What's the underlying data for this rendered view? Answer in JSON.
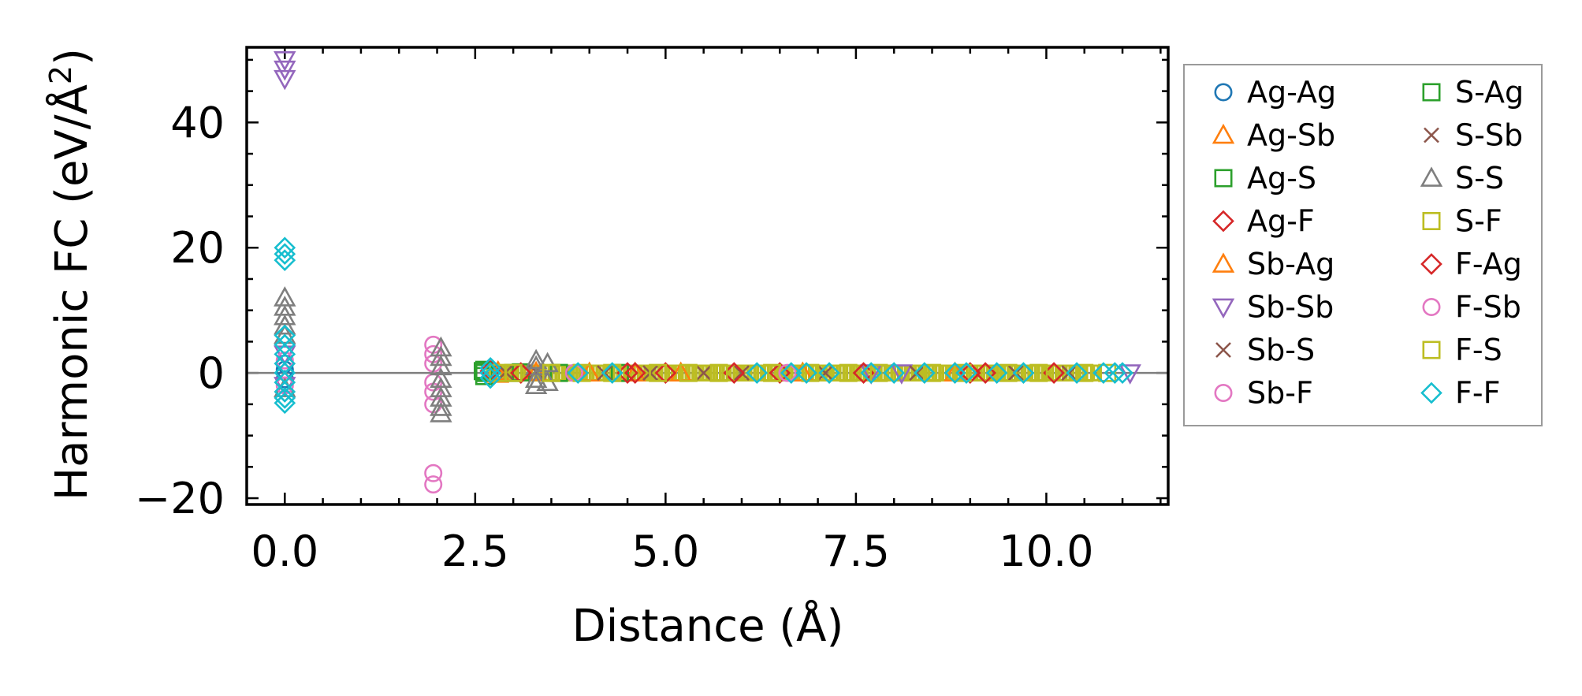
{
  "chart_data": {
    "type": "scatter",
    "title": "",
    "xlabel": "Distance (Å)",
    "ylabel_prefix": "Harmonic FC (eV/Å",
    "ylabel_sup": "2",
    "ylabel_suffix": ")",
    "xlim": [
      -0.5,
      11.6
    ],
    "ylim": [
      -21,
      52
    ],
    "xticks": [
      0,
      2.5,
      5,
      7.5,
      10
    ],
    "xtick_labels": [
      "0.0",
      "2.5",
      "5.0",
      "7.5",
      "10.0"
    ],
    "yticks": [
      -20,
      0,
      20,
      40
    ],
    "ytick_labels": [
      "−20",
      "0",
      "20",
      "40"
    ],
    "zero_line": 0,
    "legend_location": "outside-right",
    "series": [
      {
        "name": "Ag-Ag",
        "color": "#1f77b4",
        "marker": "circle",
        "points": [
          [
            0,
            1.5
          ],
          [
            0,
            -1.0
          ],
          [
            0,
            0.5
          ]
        ]
      },
      {
        "name": "Ag-Sb",
        "color": "#ff7f0e",
        "marker": "triangle-up",
        "points": [
          [
            2.8,
            0.2
          ],
          [
            3.3,
            0.1
          ],
          [
            4.6,
            0.0
          ],
          [
            5.2,
            0.0
          ]
        ]
      },
      {
        "name": "Ag-S",
        "color": "#2ca02c",
        "marker": "square",
        "points": [
          [
            2.62,
            0.5
          ],
          [
            2.62,
            -0.5
          ],
          [
            2.62,
            0.0
          ],
          [
            3.1,
            0.1
          ],
          [
            4.4,
            0.0
          ]
        ]
      },
      {
        "name": "Ag-F",
        "color": "#d62728",
        "marker": "diamond",
        "points": [
          [
            2.7,
            0.3
          ],
          [
            4.5,
            0.0
          ],
          [
            5.0,
            0.0
          ],
          [
            6.5,
            0.0
          ],
          [
            9.2,
            0.0
          ],
          [
            10.1,
            0.0
          ]
        ]
      },
      {
        "name": "Sb-Ag",
        "color": "#ff7f0e",
        "marker": "triangle-up",
        "points": [
          [
            2.8,
            -0.2
          ],
          [
            4.0,
            0.0
          ],
          [
            6.8,
            0.0
          ],
          [
            8.8,
            0.0
          ]
        ]
      },
      {
        "name": "Sb-Sb",
        "color": "#9467bd",
        "marker": "triangle-down",
        "points": [
          [
            0,
            50.0
          ],
          [
            0,
            48.5
          ],
          [
            0,
            47.0
          ],
          [
            0,
            3.0
          ],
          [
            0,
            -2.0
          ],
          [
            7.7,
            0.0
          ],
          [
            8.1,
            0.0
          ],
          [
            11.1,
            0.0
          ]
        ]
      },
      {
        "name": "Sb-S",
        "color": "#8c564b",
        "marker": "x",
        "points": [
          [
            2.9,
            0.1
          ],
          [
            4.2,
            0.0
          ],
          [
            5.5,
            0.0
          ],
          [
            7.1,
            0.0
          ],
          [
            9.6,
            0.0
          ]
        ]
      },
      {
        "name": "Sb-F",
        "color": "#e377c2",
        "marker": "circle",
        "points": [
          [
            1.95,
            4.5
          ],
          [
            1.95,
            3.0
          ],
          [
            1.95,
            1.5
          ],
          [
            1.95,
            -1.5
          ],
          [
            1.95,
            -3.0
          ],
          [
            1.95,
            -5.0
          ],
          [
            1.95,
            -16.0
          ],
          [
            1.95,
            -17.8
          ]
        ]
      },
      {
        "name": "S-Ag",
        "color": "#2ca02c",
        "marker": "square",
        "points": [
          [
            2.6,
            0.3
          ],
          [
            3.0,
            0.0
          ],
          [
            3.6,
            0.0
          ]
        ]
      },
      {
        "name": "S-Sb",
        "color": "#8c564b",
        "marker": "x",
        "points": [
          [
            3.3,
            0.2
          ],
          [
            4.8,
            0.0
          ],
          [
            6.0,
            0.0
          ],
          [
            8.3,
            0.0
          ],
          [
            10.3,
            0.0
          ]
        ]
      },
      {
        "name": "S-S",
        "color": "#7f7f7f",
        "marker": "triangle-up",
        "points": [
          [
            0,
            12.0
          ],
          [
            0,
            10.5
          ],
          [
            0,
            9.0
          ],
          [
            0,
            7.5
          ],
          [
            0,
            6.0
          ],
          [
            0,
            -2.5
          ],
          [
            2.05,
            4.0
          ],
          [
            2.05,
            2.5
          ],
          [
            2.05,
            1.0
          ],
          [
            2.05,
            -1.0
          ],
          [
            2.05,
            -2.5
          ],
          [
            2.05,
            -4.0
          ],
          [
            2.05,
            -5.5
          ],
          [
            2.05,
            -6.5
          ],
          [
            3.3,
            2.0
          ],
          [
            3.3,
            1.0
          ],
          [
            3.3,
            -1.0
          ],
          [
            3.3,
            -2.0
          ],
          [
            3.45,
            1.5
          ],
          [
            3.45,
            -1.5
          ]
        ]
      },
      {
        "name": "S-F",
        "color": "#bcbd22",
        "marker": "square",
        "points": [
          [
            2.8,
            0.0
          ],
          [
            3.5,
            0.0
          ],
          [
            4.3,
            0.0
          ],
          [
            5.3,
            0.0
          ],
          [
            6.4,
            0.0
          ],
          [
            7.4,
            0.0
          ],
          [
            8.5,
            0.0
          ],
          [
            9.5,
            0.0
          ],
          [
            10.5,
            0.0
          ]
        ]
      },
      {
        "name": "F-Ag",
        "color": "#d62728",
        "marker": "diamond",
        "points": [
          [
            3.1,
            0.0
          ],
          [
            4.6,
            0.0
          ],
          [
            5.9,
            0.0
          ],
          [
            7.6,
            0.0
          ],
          [
            9.0,
            0.0
          ]
        ]
      },
      {
        "name": "F-Sb",
        "color": "#e377c2",
        "marker": "circle",
        "points": [
          [
            0,
            2.0
          ],
          [
            0,
            -2.0
          ],
          [
            3.8,
            0.0
          ],
          [
            6.6,
            0.0
          ]
        ]
      },
      {
        "name": "F-S",
        "color": "#bcbd22",
        "marker": "square",
        "points": [
          [
            3.0,
            0.0
          ],
          [
            3.9,
            0.0
          ],
          [
            4.9,
            0.0
          ],
          [
            5.7,
            0.0
          ],
          [
            6.9,
            0.0
          ],
          [
            7.8,
            0.0
          ],
          [
            8.9,
            0.0
          ],
          [
            9.9,
            0.0
          ],
          [
            10.8,
            0.0
          ]
        ]
      },
      {
        "name": "F-F",
        "color": "#17becf",
        "marker": "diamond",
        "points": [
          [
            0,
            20.0
          ],
          [
            0,
            19.0
          ],
          [
            0,
            18.0
          ],
          [
            0,
            6.0
          ],
          [
            0,
            4.5
          ],
          [
            0,
            3.0
          ],
          [
            0,
            1.5
          ],
          [
            0,
            0.0
          ],
          [
            0,
            -1.5
          ],
          [
            0,
            -3.0
          ],
          [
            0,
            -4.0
          ],
          [
            0,
            -4.8
          ],
          [
            2.7,
            0.8
          ],
          [
            2.7,
            0.0
          ],
          [
            2.7,
            -0.8
          ],
          [
            3.85,
            0.0
          ],
          [
            4.3,
            0.0
          ],
          [
            6.2,
            0.0
          ],
          [
            6.65,
            0.0
          ],
          [
            6.85,
            0.0
          ],
          [
            7.15,
            0.0
          ],
          [
            7.7,
            0.0
          ],
          [
            8.0,
            0.0
          ],
          [
            8.4,
            0.0
          ],
          [
            8.8,
            0.0
          ],
          [
            8.95,
            0.0
          ],
          [
            9.35,
            0.0
          ],
          [
            9.7,
            0.0
          ],
          [
            10.4,
            0.0
          ],
          [
            10.75,
            0.0
          ],
          [
            10.9,
            0.0
          ],
          [
            11.0,
            0.0
          ]
        ]
      }
    ]
  }
}
